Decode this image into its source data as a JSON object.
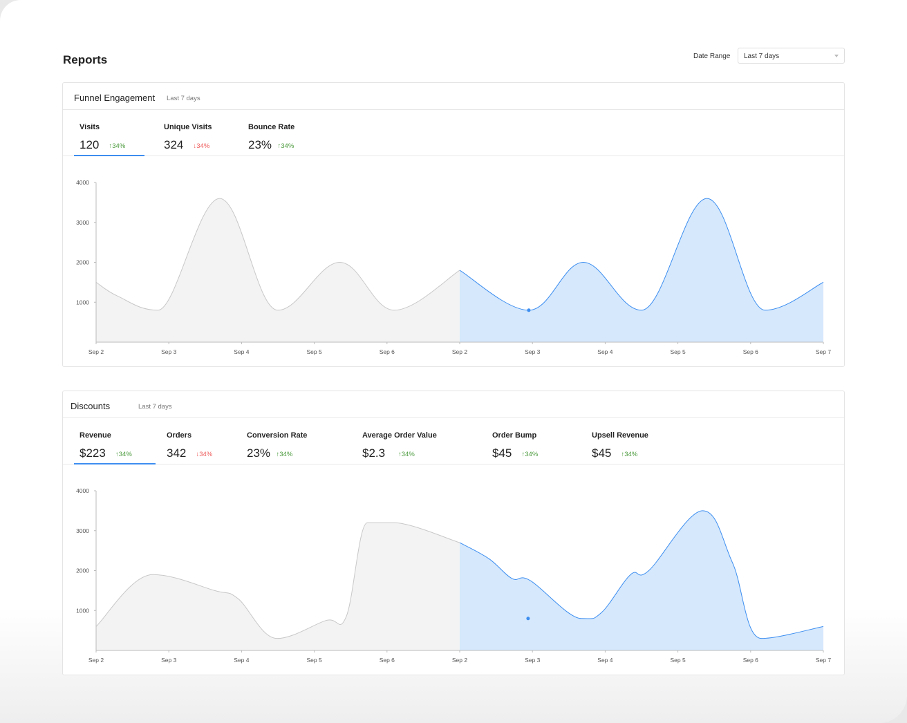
{
  "page": {
    "title": "Reports",
    "date_range_label": "Date Range",
    "date_range_value": "Last 7 days"
  },
  "colors": {
    "accent": "#3d8ef0",
    "current_fill": "#d5e8fc",
    "previous_fill": "#f3f3f3",
    "previous_line": "#c8c8c8",
    "up": "#4a9a3c",
    "down": "#ef5b5b"
  },
  "funnel": {
    "title": "Funnel Engagement",
    "subtitle": "Last 7 days",
    "metrics": [
      {
        "label": "Visits",
        "value": "120",
        "delta": "34%",
        "dir": "up"
      },
      {
        "label": "Unique Visits",
        "value": "324",
        "delta": "34%",
        "dir": "down"
      },
      {
        "label": "Bounce Rate",
        "value": "23%",
        "delta": "34%",
        "dir": "up"
      }
    ]
  },
  "discounts": {
    "title": "Discounts",
    "subtitle": "Last 7 days",
    "metrics": [
      {
        "label": "Revenue",
        "value": "$223",
        "delta": "34%",
        "dir": "up"
      },
      {
        "label": "Orders",
        "value": "342",
        "delta": "34%",
        "dir": "down"
      },
      {
        "label": "Conversion Rate",
        "value": "23%",
        "delta": "34%",
        "dir": "up"
      },
      {
        "label": "Average Order Value",
        "value": "$2.3",
        "delta": "34%",
        "dir": "up"
      },
      {
        "label": "Order Bump",
        "value": "$45",
        "delta": "34%",
        "dir": "up"
      },
      {
        "label": "Upsell Revenue",
        "value": "$45",
        "delta": "34%",
        "dir": "up"
      }
    ]
  },
  "chart_data": [
    {
      "type": "area",
      "title": "Funnel Engagement - Visits",
      "yticks": [
        1000,
        2000,
        3000,
        4000
      ],
      "ylim": [
        0,
        4000
      ],
      "xticks": [
        "Sep 2",
        "Sep 3",
        "Sep 4",
        "Sep 5",
        "Sep 6",
        "Sep 2",
        "Sep 3",
        "Sep 4",
        "Sep 5",
        "Sep 6",
        "Sep 7"
      ],
      "series": [
        {
          "name": "previous",
          "points": [
            [
              0,
              1500
            ],
            [
              0.3,
              1150
            ],
            [
              0.85,
              800
            ],
            [
              1.7,
              3600
            ],
            [
              2.5,
              800
            ],
            [
              3.35,
              2000
            ],
            [
              4.1,
              800
            ],
            [
              5,
              1800
            ]
          ]
        },
        {
          "name": "current",
          "points": [
            [
              5,
              1800
            ],
            [
              5.95,
              800
            ],
            [
              6.7,
              2000
            ],
            [
              7.5,
              800
            ],
            [
              8.4,
              3600
            ],
            [
              9.2,
              800
            ],
            [
              10,
              1500
            ]
          ]
        }
      ],
      "marker": [
        5.95,
        800
      ]
    },
    {
      "type": "area",
      "title": "Discounts - Revenue",
      "yticks": [
        1000,
        2000,
        3000,
        4000
      ],
      "ylim": [
        0,
        4000
      ],
      "xticks": [
        "Sep 2",
        "Sep 3",
        "Sep 4",
        "Sep 5",
        "Sep 6",
        "Sep 2",
        "Sep 3",
        "Sep 4",
        "Sep 5",
        "Sep 6",
        "Sep 7"
      ],
      "series": [
        {
          "name": "previous",
          "points": [
            [
              0,
              600
            ],
            [
              0.78,
              1900
            ],
            [
              1.63,
              1500
            ],
            [
              1.95,
              1300
            ],
            [
              2.49,
              300
            ],
            [
              3.16,
              750
            ],
            [
              3.44,
              850
            ],
            [
              3.73,
              3200
            ],
            [
              4.1,
              3200
            ],
            [
              5,
              2700
            ]
          ]
        },
        {
          "name": "current",
          "points": [
            [
              5,
              2700
            ],
            [
              5.4,
              2300
            ],
            [
              5.72,
              1800
            ],
            [
              5.97,
              1750
            ],
            [
              6.67,
              800
            ],
            [
              6.95,
              950
            ],
            [
              7.35,
              1900
            ],
            [
              7.6,
              2000
            ],
            [
              8.34,
              3500
            ],
            [
              8.75,
              2200
            ],
            [
              9.15,
              300
            ],
            [
              10,
              600
            ]
          ]
        }
      ],
      "marker": [
        5.94,
        800
      ]
    }
  ]
}
